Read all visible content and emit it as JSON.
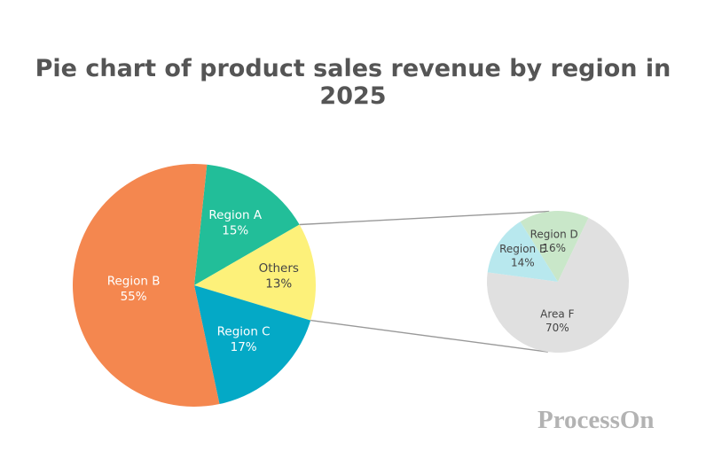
{
  "chart_data": {
    "type": "pie",
    "title": "Pie chart of product sales revenue by region in 2025",
    "main_pie": [
      {
        "label": "Region A",
        "value": 15,
        "value_label": "15%",
        "color": "#22be99"
      },
      {
        "label": "Others",
        "value": 13,
        "value_label": "13%",
        "color": "#fdf17a",
        "exploded_into_sub_pie": true
      },
      {
        "label": "Region C",
        "value": 17,
        "value_label": "17%",
        "color": "#04a9c6"
      },
      {
        "label": "Region B",
        "value": 55,
        "value_label": "55%",
        "color": "#f4874f"
      }
    ],
    "sub_pie": {
      "parent": "Others",
      "slices": [
        {
          "label": "Region D",
          "value": 16,
          "value_label": "16%",
          "color": "#c9e7c9"
        },
        {
          "label": "Area F",
          "value": 70,
          "value_label": "70%",
          "color": "#e0e0e0"
        },
        {
          "label": "Region E",
          "value": 14,
          "value_label": "14%",
          "color": "#b8e8ee"
        }
      ]
    },
    "connector_color": "#999999"
  },
  "watermark": "ProcessOn"
}
